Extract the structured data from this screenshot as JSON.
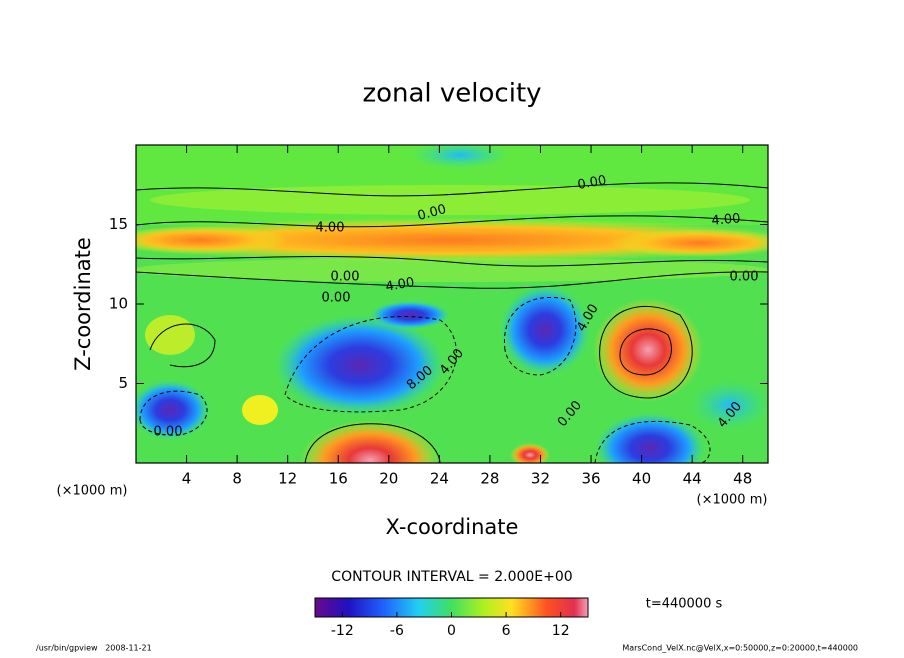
{
  "chart_data": {
    "type": "contour",
    "title": "zonal velocity",
    "x_label": "X-coordinate",
    "y_label": "Z-coordinate",
    "x_unit": "(×1000 m)",
    "y_unit": "(×1000 m)",
    "xlim": [
      0,
      50
    ],
    "xticks": [
      4,
      8,
      12,
      16,
      20,
      24,
      28,
      32,
      36,
      40,
      44,
      48
    ],
    "ylim": [
      0,
      20
    ],
    "yticks": [
      5,
      10,
      15
    ],
    "contour_interval_text": "CONTOUR INTERVAL = 2.000E+00",
    "colorbar": {
      "lim": [
        -15,
        15
      ],
      "ticks": [
        -12,
        -6,
        0,
        6,
        12
      ]
    },
    "time_label": "t=440000 s",
    "contour_labels": [
      "0.00",
      "0.00",
      "4.00",
      "4.00",
      "0.00",
      "4.00",
      "0.00",
      "0.00",
      "8.00",
      "4.00",
      "0.00",
      "4.00",
      "4.00",
      "0.00"
    ],
    "footer_left": "/usr/bin/gpview   2008-11-21",
    "footer_right": "MarsCond_VelX.nc@VelX,x=0:50000,z=0:20000,t=440000"
  }
}
